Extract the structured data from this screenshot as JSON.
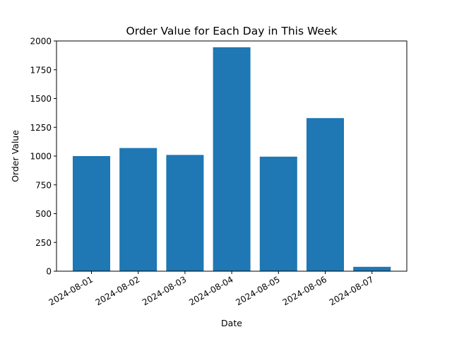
{
  "chart_data": {
    "type": "bar",
    "title": "Order Value for Each Day in This Week",
    "xlabel": "Date",
    "ylabel": "Order Value",
    "categories": [
      "2024-08-01",
      "2024-08-02",
      "2024-08-03",
      "2024-08-04",
      "2024-08-05",
      "2024-08-06",
      "2024-08-07"
    ],
    "values": [
      1000,
      1070,
      1010,
      1945,
      995,
      1330,
      38
    ],
    "ylim": [
      0,
      2000
    ],
    "yticks": [
      0,
      250,
      500,
      750,
      1000,
      1250,
      1500,
      1750,
      2000
    ],
    "bar_color": "#1f77b4",
    "grid": false,
    "legend": "none"
  }
}
